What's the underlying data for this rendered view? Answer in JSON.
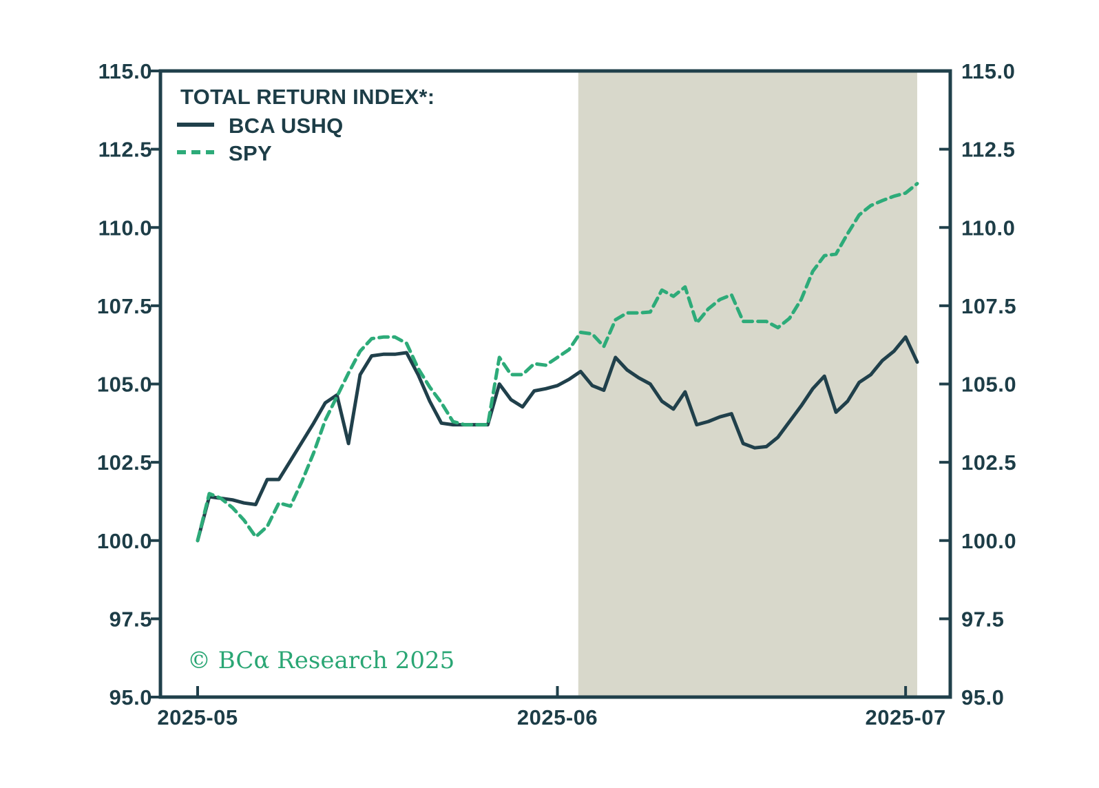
{
  "legend": {
    "title": "TOTAL RETURN INDEX*:",
    "items": [
      {
        "label": "BCA USHQ",
        "style": "solid"
      },
      {
        "label": "SPY",
        "style": "dashed"
      }
    ]
  },
  "watermark": {
    "text": "© BCα Research 2025"
  },
  "colors": {
    "bca_ushq_line": "#20404b",
    "spy_line": "#2dab79",
    "axis_text": "#1d3d47",
    "highlight_shade": "#d8d8cb",
    "watermark_green": "#2aa674",
    "background": "#ffffff"
  },
  "chart_data": {
    "type": "line",
    "title": "TOTAL RETURN INDEX*:",
    "x_start_date": "2025-05-01",
    "x_tick_labels": [
      "2025-05",
      "2025-06",
      "2025-07"
    ],
    "x_tick_days": [
      0,
      31,
      61
    ],
    "days_total": 62,
    "ylim": [
      95,
      115
    ],
    "y_tick_values": [
      95,
      97.5,
      100,
      102.5,
      105,
      107.5,
      110,
      112.5,
      115
    ],
    "y_tick_labels": [
      "95.0",
      "97.5",
      "100.0",
      "102.5",
      "105.0",
      "107.5",
      "110.0",
      "112.5",
      "115.0"
    ],
    "grid": false,
    "legend_position": "top-left",
    "highlight_region_days": [
      32.8,
      62
    ],
    "series": [
      {
        "name": "BCA USHQ",
        "dash": false,
        "color": "#20404b",
        "values": [
          100.0,
          101.4,
          101.35,
          101.3,
          101.2,
          101.15,
          101.95,
          101.95,
          102.55,
          103.15,
          103.75,
          104.4,
          104.65,
          103.1,
          105.3,
          105.9,
          105.95,
          105.95,
          106.0,
          105.3,
          104.45,
          103.75,
          103.7,
          103.7,
          103.7,
          103.7,
          105.0,
          104.5,
          104.27,
          104.78,
          104.85,
          104.95,
          105.15,
          105.4,
          104.95,
          104.8,
          105.85,
          105.45,
          105.2,
          105.0,
          104.45,
          104.2,
          104.75,
          103.7,
          103.8,
          103.95,
          104.05,
          103.1,
          102.96,
          103.0,
          103.3,
          103.8,
          104.3,
          104.85,
          105.25,
          104.1,
          104.45,
          105.05,
          105.3,
          105.75,
          106.05,
          106.5,
          105.7
        ]
      },
      {
        "name": "SPY",
        "dash": true,
        "color": "#2dab79",
        "values": [
          100.0,
          101.5,
          101.35,
          101.05,
          100.65,
          100.12,
          100.45,
          101.2,
          101.1,
          101.9,
          102.8,
          103.85,
          104.6,
          105.35,
          106.05,
          106.45,
          106.5,
          106.5,
          106.3,
          105.5,
          104.9,
          104.4,
          103.8,
          103.7,
          103.7,
          103.7,
          105.85,
          105.3,
          105.3,
          105.65,
          105.6,
          105.85,
          106.1,
          106.65,
          106.6,
          106.2,
          107.05,
          107.27,
          107.27,
          107.3,
          108.0,
          107.8,
          108.1,
          106.95,
          107.4,
          107.7,
          107.85,
          107.0,
          107.0,
          107.0,
          106.8,
          107.1,
          107.7,
          108.6,
          109.1,
          109.15,
          109.8,
          110.4,
          110.7,
          110.86,
          111.0,
          111.1,
          111.4
        ]
      }
    ]
  }
}
